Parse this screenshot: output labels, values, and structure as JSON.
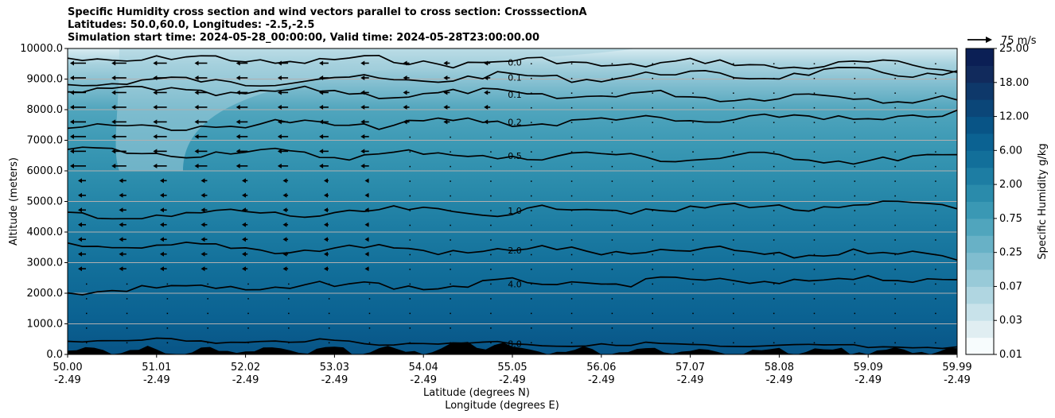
{
  "title_lines": [
    "Specific Humidity cross section and wind vectors parallel to cross section: CrosssectionA",
    "Latitudes: 50.0,60.0, Longitudes: -2.5,-2.5",
    "Simulation start time: 2024-05-28_00:00:00, Valid time: 2024-05-28T23:00:00.00"
  ],
  "chart_data": {
    "type": "heatmap",
    "ylabel": "Altitude (meters)",
    "xlabel_line1": "Latitude (degrees N)",
    "xlabel_line2": "Longitude (degrees E)",
    "ylim": [
      0,
      10000
    ],
    "yticks": [
      "0.0",
      "1000.0",
      "2000.0",
      "3000.0",
      "4000.0",
      "5000.0",
      "6000.0",
      "7000.0",
      "8000.0",
      "9000.0",
      "10000.0"
    ],
    "xticks": [
      {
        "lat": "50.00",
        "lon": "-2.49"
      },
      {
        "lat": "51.01",
        "lon": "-2.49"
      },
      {
        "lat": "52.02",
        "lon": "-2.49"
      },
      {
        "lat": "53.03",
        "lon": "-2.49"
      },
      {
        "lat": "54.04",
        "lon": "-2.49"
      },
      {
        "lat": "55.05",
        "lon": "-2.49"
      },
      {
        "lat": "56.06",
        "lon": "-2.49"
      },
      {
        "lat": "57.07",
        "lon": "-2.49"
      },
      {
        "lat": "58.08",
        "lon": "-2.49"
      },
      {
        "lat": "59.09",
        "lon": "-2.49"
      },
      {
        "lat": "59.99",
        "lon": "-2.49"
      }
    ],
    "grid": "horizontal",
    "colorbar": {
      "label": "Specific Humidity g/kg",
      "tick_labels": [
        "0.01",
        "0.03",
        "0.07",
        "0.25",
        "0.75",
        "2.00",
        "6.00",
        "12.00",
        "18.00",
        "25.00"
      ],
      "colors": [
        "#f7fcfd",
        "#e0eef2",
        "#c8e2ea",
        "#b0d6e1",
        "#98cad8",
        "#80bdcf",
        "#68b1c6",
        "#50a5bd",
        "#3a98b4",
        "#2a8bab",
        "#1d7da3",
        "#126f9a",
        "#0b6292",
        "#085486",
        "#0b4678",
        "#0e386a",
        "#112a5c",
        "#0b1f55"
      ]
    },
    "contour_levels": [
      {
        "label": "0.0",
        "altitude": 9550
      },
      {
        "label": "0.1",
        "altitude": 9050
      },
      {
        "label": "0.1",
        "altitude": 8500
      },
      {
        "label": "0.2",
        "altitude": 7600
      },
      {
        "label": "0.5",
        "altitude": 6500
      },
      {
        "label": "1.0",
        "altitude": 4700
      },
      {
        "label": "2.0",
        "altitude": 3400
      },
      {
        "label": "4.0",
        "altitude": 2300
      },
      {
        "label": "8.0",
        "altitude": 350
      }
    ],
    "wind_key": {
      "label": "75 m/s",
      "speed": 75
    },
    "wind_vectors": "westward (negative) flow, strongest near 50.0-53.0 N above 5000 m, near-zero elsewhere",
    "terrain": "black filled orography near surface"
  }
}
